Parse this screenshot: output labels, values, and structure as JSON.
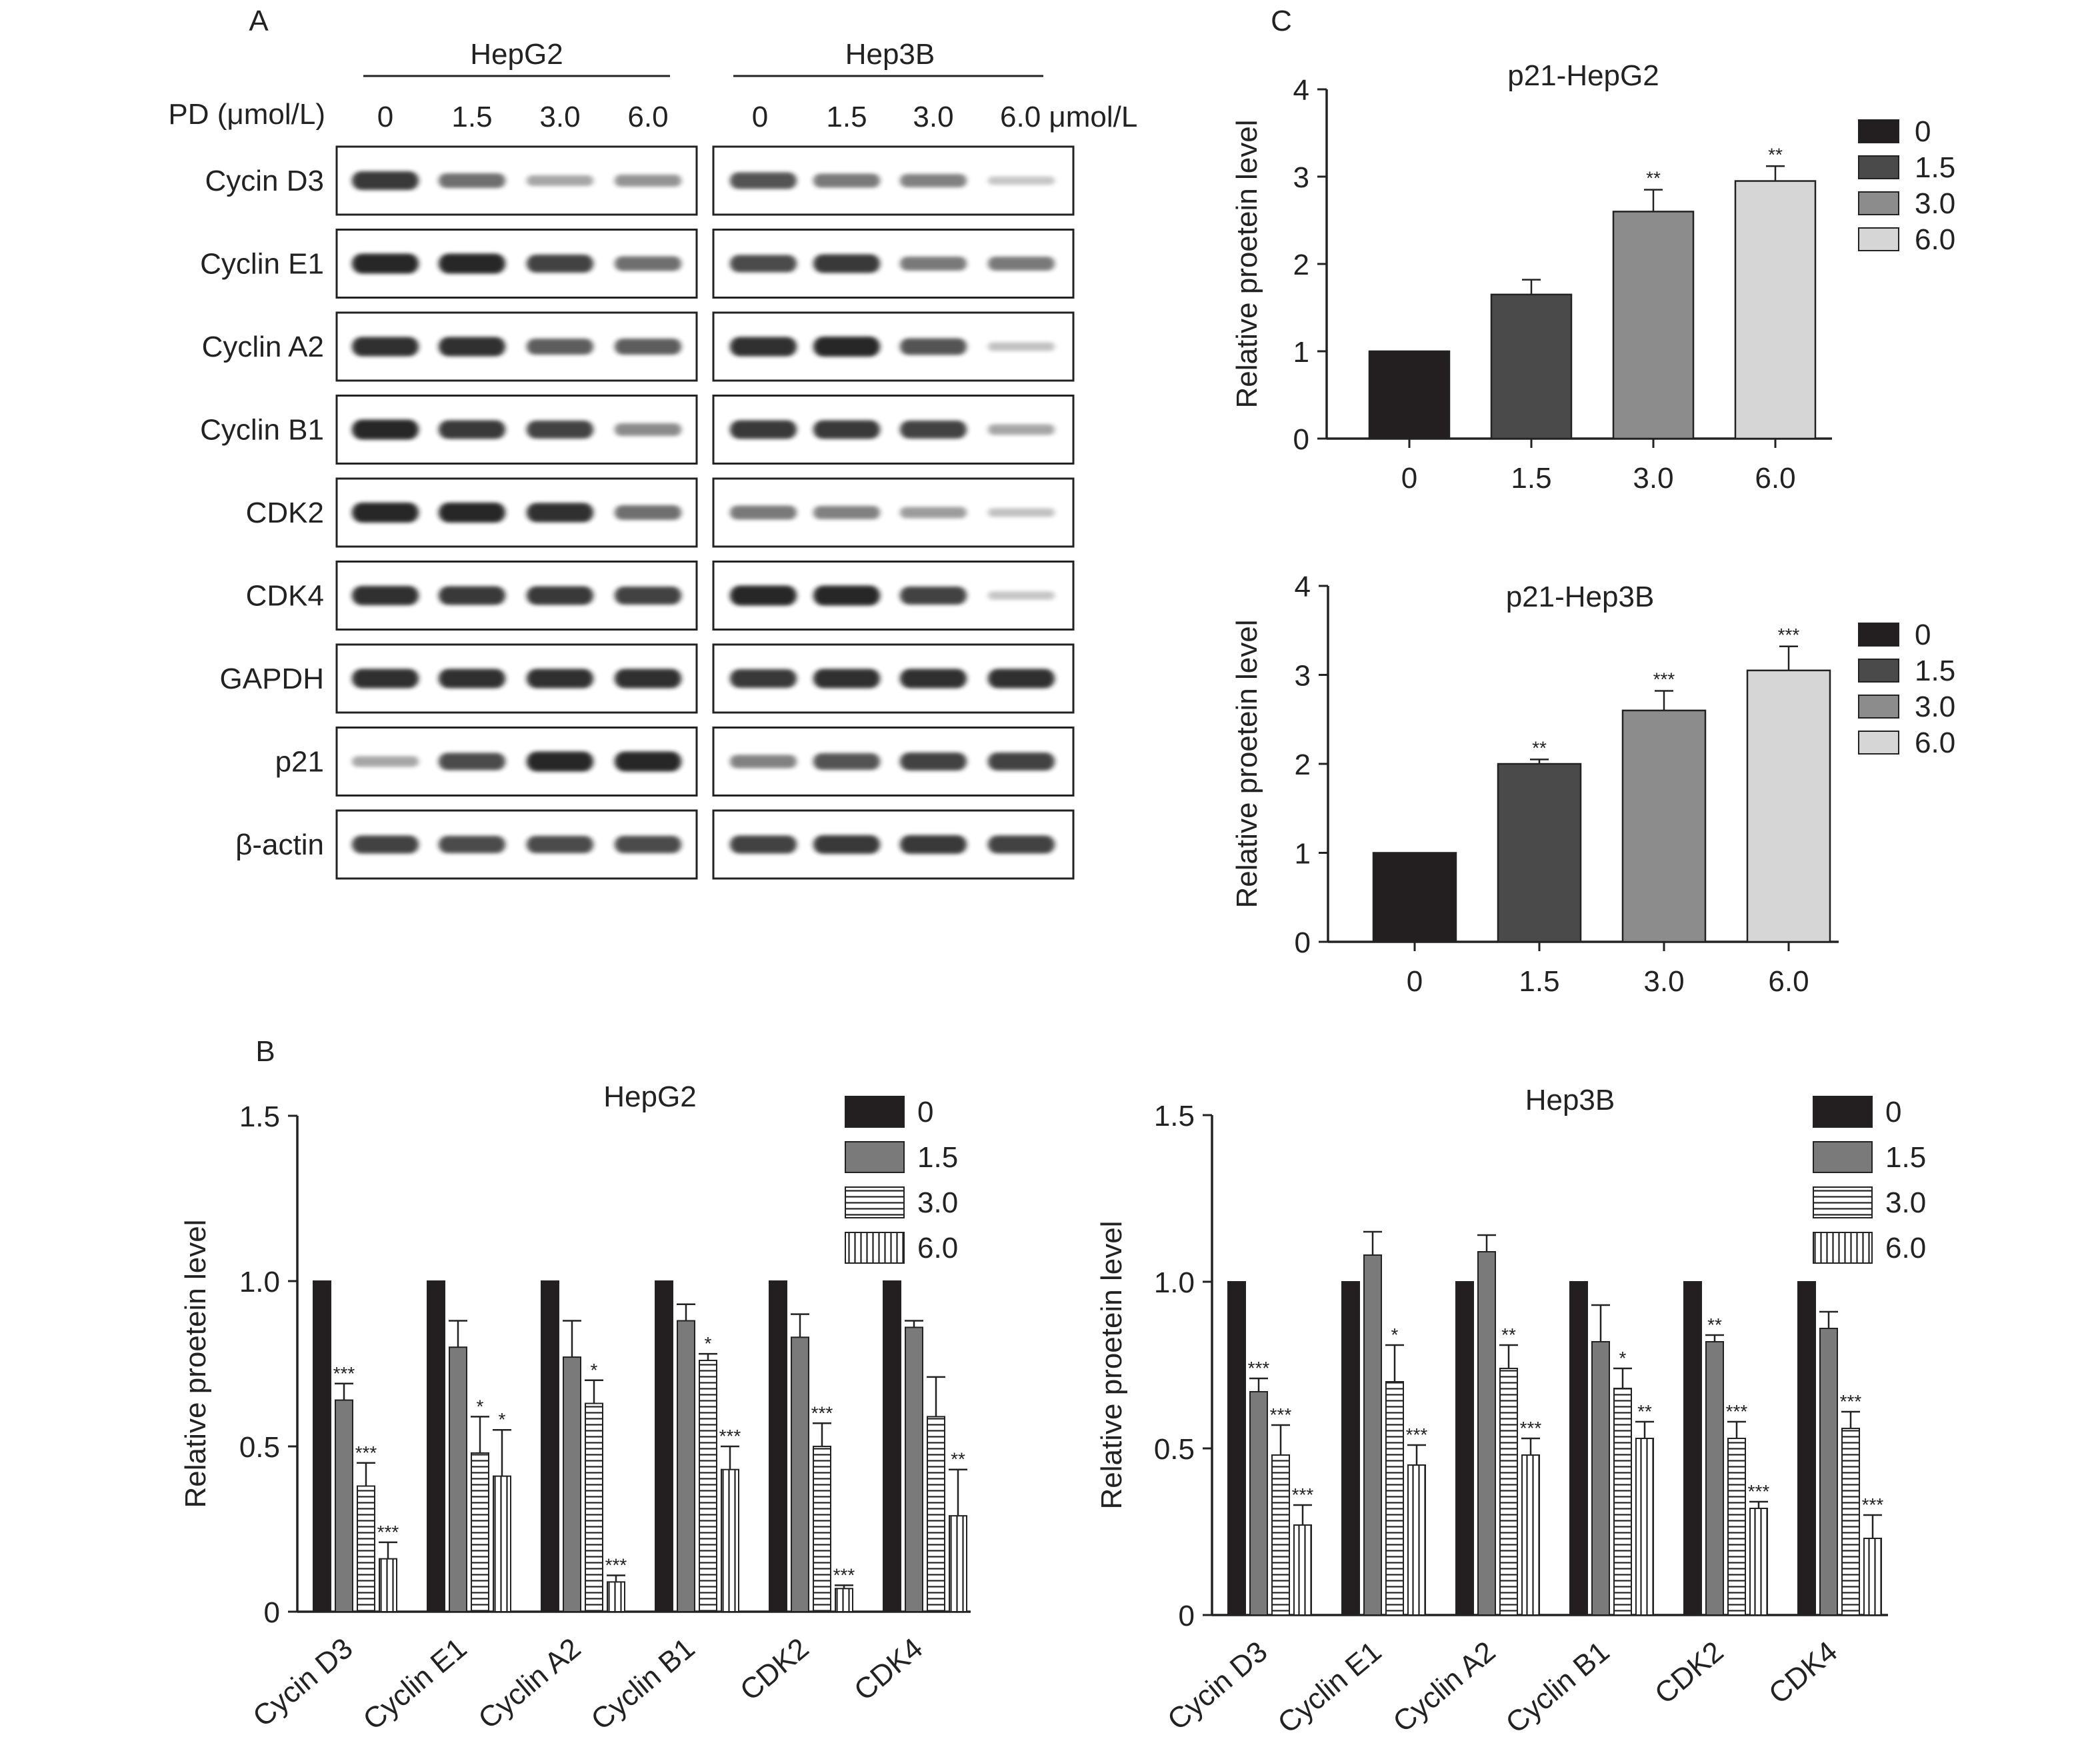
{
  "panels": {
    "a": "A",
    "b": "B",
    "c": "C"
  },
  "blot": {
    "cell_lines": [
      "HepG2",
      "Hep3B"
    ],
    "dose_label": "PD (μmol/L)",
    "doses": [
      "0",
      "1.5",
      "3.0",
      "6.0"
    ],
    "doses_hep3b": [
      "0",
      "1.5",
      "3.0",
      "6.0 μmol/L"
    ],
    "rows": [
      {
        "label": "Cycin D3",
        "hepg2": [
          0.9,
          0.6,
          0.3,
          0.4
        ],
        "hep3b": [
          0.75,
          0.55,
          0.5,
          0.12
        ]
      },
      {
        "label": "Cyclin E1",
        "hepg2": [
          1.0,
          1.0,
          0.85,
          0.6
        ],
        "hep3b": [
          0.8,
          0.9,
          0.55,
          0.55
        ]
      },
      {
        "label": "Cyclin A2",
        "hepg2": [
          0.95,
          0.95,
          0.7,
          0.7
        ],
        "hep3b": [
          0.95,
          1.0,
          0.75,
          0.15
        ]
      },
      {
        "label": "Cyclin B1",
        "hepg2": [
          1.0,
          0.9,
          0.85,
          0.45
        ],
        "hep3b": [
          0.9,
          0.9,
          0.85,
          0.3
        ]
      },
      {
        "label": "CDK2",
        "hepg2": [
          1.0,
          1.0,
          0.95,
          0.6
        ],
        "hep3b": [
          0.55,
          0.5,
          0.35,
          0.15
        ]
      },
      {
        "label": "CDK4",
        "hepg2": [
          0.95,
          0.9,
          0.9,
          0.85
        ],
        "hep3b": [
          1.0,
          1.0,
          0.85,
          0.12
        ]
      },
      {
        "label": "GAPDH",
        "hepg2": [
          0.95,
          0.95,
          0.95,
          0.95
        ],
        "hep3b": [
          0.9,
          0.95,
          0.95,
          0.95
        ]
      },
      {
        "label": "p21",
        "hepg2": [
          0.3,
          0.8,
          1.0,
          1.0
        ],
        "hep3b": [
          0.5,
          0.75,
          0.85,
          0.85
        ]
      },
      {
        "label": "β-actin",
        "hepg2": [
          0.85,
          0.8,
          0.8,
          0.8
        ],
        "hep3b": [
          0.85,
          0.9,
          0.9,
          0.85
        ]
      }
    ]
  },
  "chart_data": [
    {
      "type": "bar",
      "title": "HepG2",
      "xlabel": "",
      "ylabel": "Relative proetein level",
      "categories": [
        "Cycin D3",
        "Cyclin E1",
        "Cyclin A2",
        "Cyclin B1",
        "CDK2",
        "CDK4"
      ],
      "ylim": [
        0,
        1.5
      ],
      "yticks": [
        "0",
        "0.5",
        "1.0",
        "1.5"
      ],
      "legend_position": "top-right",
      "series": [
        {
          "name": "0",
          "values": [
            1.0,
            1.0,
            1.0,
            1.0,
            1.0,
            1.0
          ],
          "errors": [
            0,
            0,
            0,
            0,
            0,
            0
          ],
          "sig": [
            "",
            "",
            "",
            "",
            "",
            ""
          ]
        },
        {
          "name": "1.5",
          "values": [
            0.64,
            0.8,
            0.77,
            0.88,
            0.83,
            0.86
          ],
          "errors": [
            0.05,
            0.08,
            0.11,
            0.05,
            0.07,
            0.02
          ],
          "sig": [
            "***",
            "",
            "",
            "",
            "",
            ""
          ]
        },
        {
          "name": "3.0",
          "values": [
            0.38,
            0.48,
            0.63,
            0.76,
            0.5,
            0.59
          ],
          "errors": [
            0.07,
            0.11,
            0.07,
            0.02,
            0.07,
            0.12
          ],
          "sig": [
            "***",
            "*",
            "*",
            "*",
            "***",
            ""
          ]
        },
        {
          "name": "6.0",
          "values": [
            0.16,
            0.41,
            0.09,
            0.43,
            0.07,
            0.29
          ],
          "errors": [
            0.05,
            0.14,
            0.02,
            0.07,
            0.01,
            0.14
          ],
          "sig": [
            "***",
            "*",
            "***",
            "***",
            "***",
            "**"
          ]
        }
      ]
    },
    {
      "type": "bar",
      "title": "Hep3B",
      "xlabel": "",
      "ylabel": "Relative proetein level",
      "categories": [
        "Cycin D3",
        "Cyclin E1",
        "Cyclin A2",
        "Cyclin B1",
        "CDK2",
        "CDK4"
      ],
      "ylim": [
        0,
        1.5
      ],
      "yticks": [
        "0",
        "0.5",
        "1.0",
        "1.5"
      ],
      "legend_position": "top-right",
      "series": [
        {
          "name": "0",
          "values": [
            1.0,
            1.0,
            1.0,
            1.0,
            1.0,
            1.0
          ],
          "errors": [
            0,
            0,
            0,
            0,
            0,
            0
          ],
          "sig": [
            "",
            "",
            "",
            "",
            "",
            ""
          ]
        },
        {
          "name": "1.5",
          "values": [
            0.67,
            1.08,
            1.09,
            0.82,
            0.82,
            0.86
          ],
          "errors": [
            0.04,
            0.07,
            0.05,
            0.11,
            0.02,
            0.05
          ],
          "sig": [
            "***",
            "",
            "",
            "",
            "**",
            ""
          ]
        },
        {
          "name": "3.0",
          "values": [
            0.48,
            0.7,
            0.74,
            0.68,
            0.53,
            0.56
          ],
          "errors": [
            0.09,
            0.11,
            0.07,
            0.06,
            0.05,
            0.05
          ],
          "sig": [
            "***",
            "*",
            "**",
            "*",
            "***",
            "***"
          ]
        },
        {
          "name": "6.0",
          "values": [
            0.27,
            0.45,
            0.48,
            0.53,
            0.32,
            0.23
          ],
          "errors": [
            0.06,
            0.06,
            0.05,
            0.05,
            0.02,
            0.07
          ],
          "sig": [
            "***",
            "***",
            "***",
            "**",
            "***",
            "***"
          ]
        }
      ]
    },
    {
      "type": "bar",
      "title": "p21-HepG2",
      "xlabel": "",
      "ylabel": "Relative proetein level",
      "categories": [
        "0",
        "1.5",
        "3.0",
        "6.0"
      ],
      "ylim": [
        0,
        4
      ],
      "yticks": [
        "0",
        "1",
        "2",
        "3",
        "4"
      ],
      "legend_position": "top-right",
      "series": [
        {
          "name": "p21-HepG2",
          "values": [
            1.0,
            1.65,
            2.6,
            2.95
          ],
          "errors": [
            0,
            0.17,
            0.25,
            0.17
          ],
          "sig": [
            "",
            "",
            "**",
            "**"
          ]
        }
      ],
      "legend": [
        "0",
        "1.5",
        "3.0",
        "6.0"
      ]
    },
    {
      "type": "bar",
      "title": "p21-Hep3B",
      "xlabel": "",
      "ylabel": "Relative proetein level",
      "categories": [
        "0",
        "1.5",
        "3.0",
        "6.0"
      ],
      "ylim": [
        0,
        4
      ],
      "yticks": [
        "0",
        "1",
        "2",
        "3",
        "4"
      ],
      "legend_position": "top-right",
      "series": [
        {
          "name": "p21-Hep3B",
          "values": [
            1.0,
            2.0,
            2.6,
            3.05
          ],
          "errors": [
            0,
            0.05,
            0.22,
            0.27
          ],
          "sig": [
            "",
            "**",
            "***",
            "***"
          ]
        }
      ],
      "legend": [
        "0",
        "1.5",
        "3.0",
        "6.0"
      ]
    }
  ],
  "colors": {
    "bar_0": "#231f20",
    "bar_1_5_b": "#7a7a7a",
    "bar_1_5_c": "#4a4a4a",
    "bar_3_0_c": "#8c8c8c",
    "bar_6_0_c": "#d6d6d6",
    "axis": "#222222",
    "band": "#1a1a1a"
  }
}
